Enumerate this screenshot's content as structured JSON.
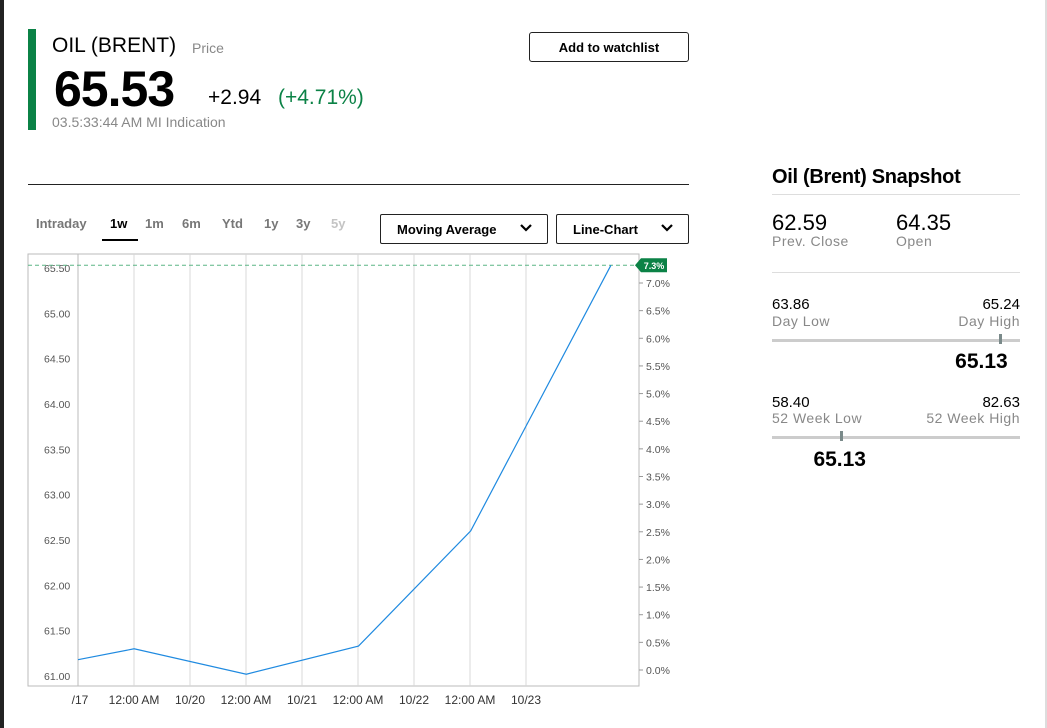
{
  "quote": {
    "symbol": "OIL (BRENT)",
    "symbol_sub": "Price",
    "price": "65.53",
    "change": "+2.94",
    "change_pct": "(+4.71%)",
    "timestamp": "03.5:33:44 AM  MI Indication",
    "watchlist_label": "Add to watchlist"
  },
  "colors": {
    "accent_green": "#0b8246",
    "line_blue": "#1f8ae0",
    "grid": "#d8d8d8"
  },
  "tabs": [
    {
      "label": "Intraday",
      "active": false
    },
    {
      "label": "1w",
      "active": true
    },
    {
      "label": "1m",
      "active": false
    },
    {
      "label": "6m",
      "active": false
    },
    {
      "label": "Ytd",
      "active": false
    },
    {
      "label": "1y",
      "active": false
    },
    {
      "label": "3y",
      "active": false
    },
    {
      "label": "5y",
      "active": false
    }
  ],
  "controls": {
    "moving_average": "Moving Average",
    "chart_type": "Line-Chart"
  },
  "chart_data": {
    "type": "line",
    "x_tick_labels": [
      "/17",
      "12:00 AM",
      "10/20",
      "12:00 AM",
      "10/21",
      "12:00 AM",
      "10/22",
      "12:00 AM",
      "10/23"
    ],
    "y_left_ticks": [
      "65.50",
      "65.00",
      "64.50",
      "64.00",
      "63.50",
      "63.00",
      "62.50",
      "62.00",
      "61.50",
      "61.00"
    ],
    "y_right_ticks": [
      "7.0%",
      "6.5%",
      "6.0%",
      "5.5%",
      "5.0%",
      "4.5%",
      "4.0%",
      "3.5%",
      "3.0%",
      "2.5%",
      "2.0%",
      "1.5%",
      "1.0%",
      "0.5%",
      "0.0%"
    ],
    "ylim": [
      60.95,
      65.55
    ],
    "points": [
      {
        "x": 0.0,
        "y": 61.18
      },
      {
        "x": 1.0,
        "y": 61.3
      },
      {
        "x": 3.0,
        "y": 61.02
      },
      {
        "x": 5.0,
        "y": 61.33
      },
      {
        "x": 7.0,
        "y": 62.6
      },
      {
        "x": 9.5,
        "y": 65.53
      }
    ],
    "x_range": [
      0,
      10
    ],
    "last_value_badge": "7.3%",
    "grid": true
  },
  "snapshot": {
    "title": "Oil (Brent) Snapshot",
    "prev_close": "62.59",
    "prev_close_label": "Prev. Close",
    "open": "64.35",
    "open_label": "Open",
    "day_low": "63.86",
    "day_low_label": "Day Low",
    "day_high": "65.24",
    "day_high_label": "Day High",
    "day_now": "65.13",
    "day_now_fraction": 0.92,
    "wk52_low": "58.40",
    "wk52_low_label": "52 Week Low",
    "wk52_high": "82.63",
    "wk52_high_label": "52 Week High",
    "wk52_now": "65.13",
    "wk52_now_fraction": 0.28
  }
}
